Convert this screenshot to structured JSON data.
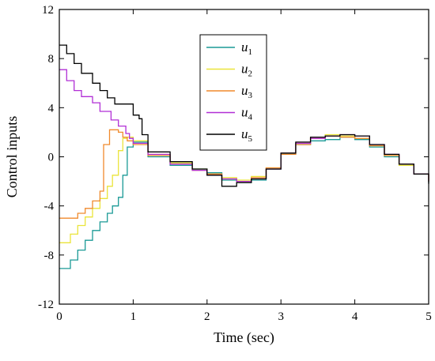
{
  "chart_data": {
    "type": "line",
    "title": "",
    "xlabel": "Time (sec)",
    "ylabel": "Control inputs",
    "xlim": [
      0,
      5
    ],
    "ylim": [
      -12,
      12
    ],
    "xticks": [
      0,
      1,
      2,
      3,
      4,
      5
    ],
    "yticks": [
      -12,
      -8,
      -4,
      0,
      4,
      8,
      12
    ],
    "xtick_labels": [
      "0",
      "1",
      "2",
      "3",
      "4",
      "5"
    ],
    "ytick_labels": [
      "-12",
      "-8",
      "-4",
      "0",
      "4",
      "8",
      "12"
    ],
    "grid": false,
    "legend_position": "top-center",
    "series": [
      {
        "name": "u1",
        "legend_base": "u",
        "legend_sub": "1",
        "color": "#1a9a96",
        "x": [
          0,
          0.15,
          0.25,
          0.35,
          0.45,
          0.55,
          0.65,
          0.72,
          0.8,
          0.86,
          0.92,
          1.0,
          1.2,
          1.5,
          1.8,
          2.0,
          2.2,
          2.4,
          2.6,
          2.8,
          3.0,
          3.2,
          3.4,
          3.6,
          3.8,
          4.0,
          4.2,
          4.4,
          4.6,
          4.8,
          5.0
        ],
        "y": [
          -9.1,
          -8.4,
          -7.6,
          -6.8,
          -6.0,
          -5.3,
          -4.6,
          -4.0,
          -3.3,
          -1.5,
          0.8,
          1.2,
          0.0,
          -0.7,
          -1.0,
          -1.3,
          -1.9,
          -2.1,
          -1.9,
          -1.0,
          0.2,
          1.0,
          1.3,
          1.4,
          1.6,
          1.4,
          0.8,
          0.0,
          -0.6,
          -1.4,
          -2.1
        ]
      },
      {
        "name": "u2",
        "legend_base": "u",
        "legend_sub": "2",
        "color": "#eae43a",
        "x": [
          0,
          0.15,
          0.25,
          0.35,
          0.45,
          0.55,
          0.65,
          0.72,
          0.8,
          0.86,
          0.92,
          1.0,
          1.2,
          1.5,
          1.8,
          2.0,
          2.2,
          2.4,
          2.6,
          2.8,
          3.0,
          3.2,
          3.4,
          3.6,
          3.8,
          4.0,
          4.2,
          4.4,
          4.6,
          4.8,
          5.0
        ],
        "y": [
          -7.0,
          -6.3,
          -5.6,
          -4.9,
          -4.2,
          -3.4,
          -2.4,
          -1.5,
          0.5,
          1.5,
          1.6,
          1.3,
          0.2,
          -0.5,
          -1.0,
          -1.4,
          -1.7,
          -1.9,
          -1.6,
          -0.9,
          0.3,
          1.1,
          1.6,
          1.8,
          1.7,
          1.5,
          0.9,
          0.1,
          -0.7,
          -1.4,
          -2.0
        ]
      },
      {
        "name": "u3",
        "legend_base": "u",
        "legend_sub": "3",
        "color": "#f08a2c",
        "x": [
          0,
          0.15,
          0.25,
          0.35,
          0.45,
          0.55,
          0.6,
          0.68,
          0.8,
          0.86,
          0.92,
          1.0,
          1.2,
          1.5,
          1.8,
          2.0,
          2.2,
          2.4,
          2.6,
          2.8,
          3.0,
          3.2,
          3.4,
          3.6,
          3.8,
          4.0,
          4.2,
          4.4,
          4.6,
          4.8,
          5.0
        ],
        "y": [
          -5.0,
          -5.0,
          -4.6,
          -4.2,
          -3.6,
          -2.8,
          1.0,
          2.2,
          2.0,
          1.6,
          1.3,
          1.0,
          0.1,
          -0.6,
          -1.1,
          -1.4,
          -1.8,
          -2.0,
          -1.7,
          -0.9,
          0.2,
          1.0,
          1.5,
          1.7,
          1.6,
          1.5,
          0.9,
          0.1,
          -0.6,
          -1.4,
          -2.0
        ]
      },
      {
        "name": "u4",
        "legend_base": "u",
        "legend_sub": "4",
        "color": "#b12fd6",
        "x": [
          0,
          0.1,
          0.2,
          0.3,
          0.45,
          0.55,
          0.7,
          0.8,
          0.9,
          0.95,
          1.0,
          1.2,
          1.5,
          1.8,
          2.0,
          2.2,
          2.4,
          2.6,
          2.8,
          3.0,
          3.2,
          3.4,
          3.6,
          3.8,
          4.0,
          4.2,
          4.4,
          4.6,
          4.8,
          5.0
        ],
        "y": [
          7.1,
          6.2,
          5.4,
          4.9,
          4.4,
          3.7,
          3.0,
          2.5,
          1.9,
          1.5,
          1.1,
          0.2,
          -0.6,
          -1.1,
          -1.5,
          -1.8,
          -2.0,
          -1.8,
          -1.0,
          0.3,
          1.1,
          1.5,
          1.7,
          1.8,
          1.7,
          1.0,
          0.2,
          -0.6,
          -1.4,
          -2.0
        ]
      },
      {
        "name": "u5",
        "legend_base": "u",
        "legend_sub": "5",
        "color": "#000000",
        "x": [
          0,
          0.1,
          0.2,
          0.3,
          0.45,
          0.55,
          0.65,
          0.75,
          0.9,
          1.0,
          1.08,
          1.12,
          1.2,
          1.5,
          1.8,
          2.0,
          2.2,
          2.4,
          2.6,
          2.8,
          3.0,
          3.2,
          3.4,
          3.6,
          3.8,
          4.0,
          4.2,
          4.4,
          4.6,
          4.8,
          5.0
        ],
        "y": [
          9.1,
          8.4,
          7.6,
          6.8,
          6.0,
          5.4,
          4.8,
          4.3,
          4.3,
          3.4,
          3.1,
          1.8,
          0.4,
          -0.4,
          -1.0,
          -1.5,
          -2.4,
          -2.1,
          -1.8,
          -1.0,
          0.3,
          1.2,
          1.6,
          1.7,
          1.8,
          1.7,
          1.0,
          0.2,
          -0.6,
          -1.4,
          -2.2
        ]
      }
    ]
  }
}
